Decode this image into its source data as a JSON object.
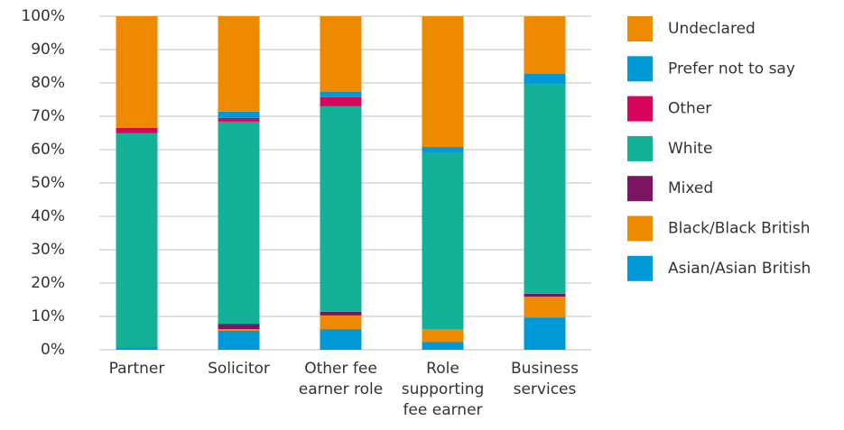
{
  "chart_data": {
    "type": "stacked_bar",
    "categories": [
      "Partner",
      "Solicitor",
      "Other fee earner role",
      "Role supporting fee earner",
      "Business services"
    ],
    "series": [
      {
        "name": "Asian/Asian British",
        "color": "#0099d8",
        "values": [
          0.8,
          5.7,
          6.2,
          2.4,
          9.7
        ]
      },
      {
        "name": "Black/Black British",
        "color": "#ee8a00",
        "values": [
          0,
          0.5,
          4.1,
          3.8,
          6.2
        ]
      },
      {
        "name": "Mixed",
        "color": "#7b1461",
        "values": [
          0,
          1.6,
          1.1,
          0,
          0.9
        ]
      },
      {
        "name": "White",
        "color": "#13b197",
        "values": [
          64.1,
          60.6,
          61.6,
          53,
          62.7
        ]
      },
      {
        "name": "Other",
        "color": "#d6075b",
        "values": [
          1.6,
          1.1,
          2.7,
          0,
          0
        ]
      },
      {
        "name": "Prefer not to say",
        "color": "#0099d8",
        "values": [
          0,
          1.9,
          1.6,
          1.6,
          3.2
        ]
      },
      {
        "name": "Undeclared",
        "color": "#ee8a00",
        "values": [
          33.5,
          28.6,
          22.7,
          39.2,
          17.3
        ]
      }
    ],
    "ylim": [
      0,
      100
    ],
    "yticks": [
      {
        "value": 0,
        "label": "0%"
      },
      {
        "value": 10,
        "label": "10%"
      },
      {
        "value": 20,
        "label": "20%"
      },
      {
        "value": 30,
        "label": "30%"
      },
      {
        "value": 40,
        "label": "40%"
      },
      {
        "value": 50,
        "label": "50%"
      },
      {
        "value": 60,
        "label": "60%"
      },
      {
        "value": 70,
        "label": "70%"
      },
      {
        "value": 80,
        "label": "80%"
      },
      {
        "value": 90,
        "label": "90%"
      },
      {
        "value": 100,
        "label": "100%"
      }
    ],
    "grid": true,
    "legend": "right"
  }
}
